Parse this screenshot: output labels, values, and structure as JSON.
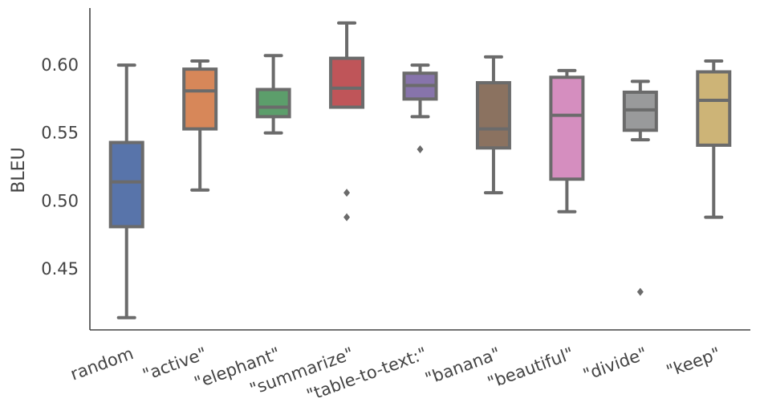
{
  "chart_data": {
    "type": "box",
    "title": "",
    "xlabel": "",
    "ylabel": "BLEU",
    "ylim": [
      0.405,
      0.642
    ],
    "yticks": [
      0.45,
      0.5,
      0.55,
      0.6
    ],
    "ytick_labels": [
      "0.45",
      "0.50",
      "0.55",
      "0.60"
    ],
    "grid": false,
    "legend": "none",
    "line_color": "#6b6b6b",
    "categories": [
      "random",
      "\"active\"",
      "\"elephant\"",
      "\"summarize\"",
      "\"table-to-text:\"",
      "\"banana\"",
      "\"beautiful\"",
      "\"divide\"",
      "\"keep\""
    ],
    "colors": [
      "#5874aa",
      "#d78759",
      "#5c9e6b",
      "#bf5559",
      "#8774ab",
      "#8b7260",
      "#d58ebf",
      "#999a9b",
      "#cdb477"
    ],
    "boxes": [
      {
        "whislo": 0.414,
        "q1": 0.481,
        "med": 0.514,
        "q3": 0.543,
        "whishi": 0.6,
        "fliers": []
      },
      {
        "whislo": 0.508,
        "q1": 0.553,
        "med": 0.581,
        "q3": 0.597,
        "whishi": 0.603,
        "fliers": []
      },
      {
        "whislo": 0.55,
        "q1": 0.562,
        "med": 0.569,
        "q3": 0.582,
        "whishi": 0.607,
        "fliers": []
      },
      {
        "whislo": 0.569,
        "q1": 0.569,
        "med": 0.583,
        "q3": 0.605,
        "whishi": 0.631,
        "fliers": [
          0.506,
          0.488
        ]
      },
      {
        "whislo": 0.562,
        "q1": 0.575,
        "med": 0.585,
        "q3": 0.594,
        "whishi": 0.6,
        "fliers": [
          0.538
        ]
      },
      {
        "whislo": 0.506,
        "q1": 0.539,
        "med": 0.553,
        "q3": 0.587,
        "whishi": 0.606,
        "fliers": []
      },
      {
        "whislo": 0.492,
        "q1": 0.516,
        "med": 0.563,
        "q3": 0.591,
        "whishi": 0.596,
        "fliers": []
      },
      {
        "whislo": 0.545,
        "q1": 0.552,
        "med": 0.567,
        "q3": 0.58,
        "whishi": 0.588,
        "fliers": [
          0.433
        ]
      },
      {
        "whislo": 0.488,
        "q1": 0.541,
        "med": 0.574,
        "q3": 0.595,
        "whishi": 0.603,
        "fliers": []
      }
    ]
  }
}
